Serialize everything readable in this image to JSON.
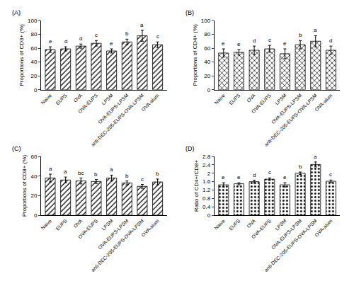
{
  "chart_data": [
    {
      "type": "bar",
      "title": "(A)",
      "y_label": "Proportions of CD3+ (%)",
      "categories": [
        "Naive",
        "EUPS",
        "OVA",
        "OVA-EUPS",
        "LPSM",
        "OVA-EUPS-LPSM",
        "anti-DEC-205-EUPS-OVA-LPSM",
        "OVA-alum"
      ],
      "values": [
        58,
        59,
        63,
        67,
        56,
        69,
        78,
        65
      ],
      "errors": [
        4,
        3,
        3,
        4,
        3,
        4,
        8,
        4
      ],
      "annotations": [
        "e",
        "d",
        "d",
        "c",
        "e",
        "b",
        "a",
        "c"
      ],
      "color": "#000000",
      "marker": "hatch",
      "ylim": [
        0,
        100
      ],
      "yticks": [
        0,
        20,
        40,
        60,
        80,
        100
      ],
      "grid": false
    },
    {
      "type": "bar",
      "title": "(B)",
      "y_label": "Proportions of CD4+ (%)",
      "categories": [
        "Naive",
        "EUPS",
        "OVA",
        "OVA-EUPS",
        "LPSM",
        "OVA-EUPS-LPSM",
        "anti-DEC-205-EUPS-OVA-LPSM",
        "OVA-alum"
      ],
      "values": [
        53,
        54,
        57,
        59,
        52,
        65,
        70,
        57
      ],
      "errors": [
        6,
        4,
        6,
        5,
        7,
        6,
        8,
        6
      ],
      "annotations": [
        "e",
        "e",
        "d",
        "c",
        "e",
        "b",
        "a",
        "d"
      ],
      "color": "#000000",
      "marker": "crosshatch",
      "ylim": [
        0,
        100
      ],
      "yticks": [
        0,
        20,
        40,
        60,
        80,
        100
      ],
      "grid": false
    },
    {
      "type": "bar",
      "title": "(C)",
      "y_label": "Proportions of CD8+ (%)",
      "categories": [
        "Naive",
        "EUPS",
        "OVA",
        "OVA-EUPS",
        "LPSM",
        "OVA-EUPS-LPSM",
        "anti-DEC-205-EUPS-OVA-LPSM",
        "OVA-alum"
      ],
      "values": [
        38,
        36,
        35,
        34.5,
        38,
        33,
        29.5,
        34
      ],
      "errors": [
        4,
        3,
        3,
        2,
        3,
        2,
        2,
        3
      ],
      "annotations": [
        "a",
        "a",
        "bc",
        "b",
        "a",
        "b",
        "c",
        "b"
      ],
      "color": "#000000",
      "marker": "hatch",
      "ylim": [
        0,
        60
      ],
      "yticks": [
        0,
        20,
        40,
        60
      ],
      "grid": false
    },
    {
      "type": "bar",
      "title": "(D)",
      "y_label": "Ratio of CD4+/CD8+",
      "categories": [
        "Naive",
        "EUPS",
        "OVA",
        "OVA-EUPS",
        "LPSM",
        "OVA-EUPS-LPSM",
        "anti-DEC-205-EUPS-OVA-LPSM",
        "OVA-alum"
      ],
      "values": [
        1.45,
        1.5,
        1.6,
        1.72,
        1.45,
        2.0,
        2.42,
        1.62
      ],
      "errors": [
        0.1,
        0.05,
        0.07,
        0.06,
        0.1,
        0.06,
        0.12,
        0.06
      ],
      "annotations": [
        "e",
        "e",
        "d",
        "c",
        "e",
        "b",
        "a",
        "c"
      ],
      "color": "#000000",
      "marker": "dots",
      "ylim": [
        0,
        2.8
      ],
      "yticks": [
        0,
        0.4,
        0.8,
        1.2,
        1.6,
        2,
        2.4,
        2.8
      ],
      "grid": false
    }
  ]
}
